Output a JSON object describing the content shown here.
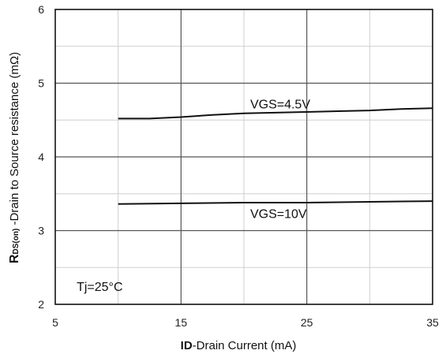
{
  "chart_data": {
    "type": "line",
    "xlabel": {
      "bold": "ID",
      "rest": "-Drain Current  (mA)"
    },
    "ylabel": {
      "bold": "R",
      "sub": "DS(on)",
      "rest": " -Drain to Source resistance  (mΩ)"
    },
    "xlim": [
      5,
      35
    ],
    "ylim": [
      2,
      6
    ],
    "xticks": [
      "5",
      "15",
      "25",
      "35"
    ],
    "yticks": [
      "2",
      "3",
      "4",
      "5",
      "6"
    ],
    "grid": true,
    "series": [
      {
        "name": "VGS=4.5V",
        "x": [
          10,
          12.5,
          15,
          17.5,
          20,
          22.5,
          25,
          27.5,
          30,
          32.5,
          35
        ],
        "y": [
          4.52,
          4.52,
          4.54,
          4.57,
          4.59,
          4.6,
          4.61,
          4.62,
          4.63,
          4.65,
          4.66
        ]
      },
      {
        "name": "VGS=10V",
        "x": [
          10,
          15,
          20,
          25,
          30,
          35
        ],
        "y": [
          3.36,
          3.37,
          3.38,
          3.38,
          3.39,
          3.4
        ]
      }
    ],
    "annotations": [
      {
        "text": "VGS=4.5V",
        "x": 20.5,
        "y": 4.66
      },
      {
        "text": "VGS=10V",
        "x": 20.5,
        "y": 3.17
      },
      {
        "text": "Tj=25°C",
        "x": 6.7,
        "y": 2.18
      }
    ]
  }
}
